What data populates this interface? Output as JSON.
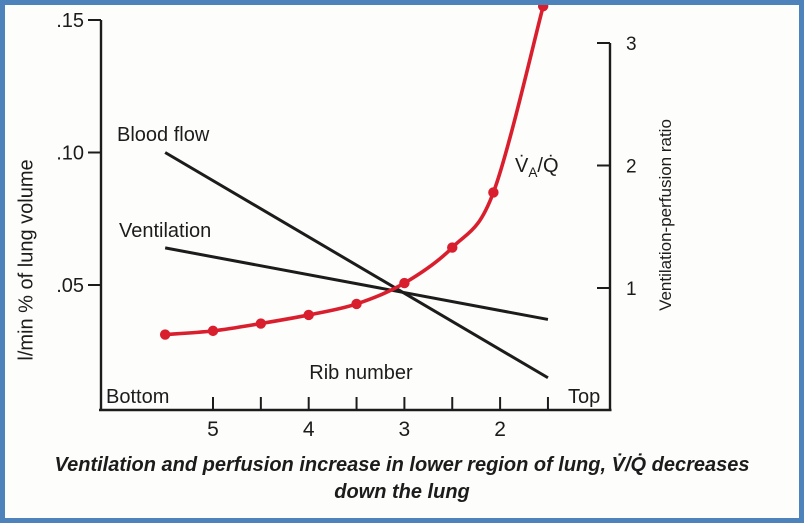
{
  "figure": {
    "border_color": "#4d82bb",
    "background_color": "#fdfdfb",
    "curve_color": "#d91f2e",
    "line_color": "#1c1c1c"
  },
  "labels": {
    "va_q": {
      "v": "V̇",
      "sub": "A",
      "rest": "/Q̇"
    }
  },
  "caption": {
    "line1": "Ventilation and perfusion increase in lower region of lung, V̇/Q̇ decreases",
    "line2": "down the lung"
  },
  "chart_data": {
    "type": "line",
    "title": "",
    "x_axis": {
      "label": "Rib number",
      "left_end": "Bottom",
      "right_end": "Top",
      "tick_positions": [
        5,
        4.5,
        4,
        3.5,
        3,
        2.5,
        2,
        1.5
      ],
      "labeled_ticks": [
        {
          "value": 5,
          "label": "5"
        },
        {
          "value": 4,
          "label": "4"
        },
        {
          "value": 3,
          "label": "3"
        },
        {
          "value": 2,
          "label": "2"
        }
      ],
      "note": "x runs from lung bottom (rib ~5.5) at left to lung top (rib ~1.5) at right"
    },
    "y_left_axis": {
      "label": "l/min % of lung volume",
      "ticks": [
        {
          "value": 0.05,
          "label": ".05"
        },
        {
          "value": 0.1,
          "label": ".10"
        },
        {
          "value": 0.15,
          "label": ".15"
        }
      ],
      "range": [
        0.01,
        0.155
      ]
    },
    "y_right_axis": {
      "label": "Ventilation-perfusion ratio",
      "ticks": [
        {
          "value": 1,
          "label": "1"
        },
        {
          "value": 2,
          "label": "2"
        },
        {
          "value": 3,
          "label": "3"
        }
      ],
      "range": [
        0.55,
        3.35
      ]
    },
    "series": [
      {
        "name": "Blood flow",
        "style": "straight-line",
        "color": "#1c1c1c",
        "y_axis": "left",
        "points": [
          {
            "x": 5.5,
            "y": 0.1
          },
          {
            "x": 1.5,
            "y": 0.015
          }
        ]
      },
      {
        "name": "Ventilation",
        "style": "straight-line",
        "color": "#1c1c1c",
        "y_axis": "left",
        "points": [
          {
            "x": 5.5,
            "y": 0.064
          },
          {
            "x": 1.5,
            "y": 0.037
          }
        ]
      },
      {
        "name": "V̇A/Q̇",
        "style": "smooth-curve-with-dots",
        "color": "#d91f2e",
        "y_axis": "right",
        "points": [
          {
            "x": 5.5,
            "y": 0.62
          },
          {
            "x": 5.0,
            "y": 0.65
          },
          {
            "x": 4.5,
            "y": 0.71
          },
          {
            "x": 4.0,
            "y": 0.78
          },
          {
            "x": 3.5,
            "y": 0.87
          },
          {
            "x": 3.0,
            "y": 1.04
          },
          {
            "x": 2.5,
            "y": 1.33
          },
          {
            "x": 2.07,
            "y": 1.78
          },
          {
            "x": 1.55,
            "y": 3.3
          }
        ]
      }
    ]
  }
}
